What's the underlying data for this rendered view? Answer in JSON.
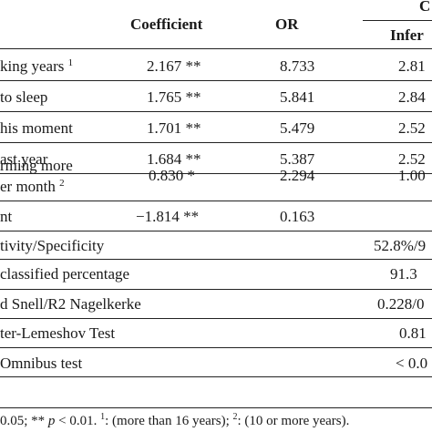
{
  "header": {
    "coefficient": "Coefficient",
    "or": "OR",
    "ci_top": "C",
    "ci_inferior": "Infer"
  },
  "rows": [
    {
      "label": "king years",
      "label_sup": "1",
      "coef": "2.167",
      "sig": "**",
      "or": "8.733",
      "ci": "2.81"
    },
    {
      "label": "to sleep",
      "label_sup": "",
      "coef": "1.765",
      "sig": "**",
      "or": "5.841",
      "ci": "2.84"
    },
    {
      "label": "his moment",
      "label_sup": "",
      "coef": "1.701",
      "sig": "**",
      "or": "5.479",
      "ci": "2.52"
    },
    {
      "label": "ast year",
      "label_sup": "",
      "coef": "1.684",
      "sig": "**",
      "or": "5.387",
      "ci": "2.52"
    },
    {
      "label_line1": "rming more",
      "label_line2": "er month",
      "label_sup": "2",
      "coef": "0.830",
      "sig": "*",
      "or": "2.294",
      "ci": "1.00"
    },
    {
      "label": "nt",
      "label_sup": "",
      "coef": "−1.814",
      "sig": "**",
      "or": "0.163",
      "ci": ""
    }
  ],
  "summary": [
    {
      "label": "tivity/Specificity",
      "value": "52.8%/9"
    },
    {
      "label": "classified percentage",
      "value": "91.3"
    },
    {
      "label": "d Snell/R2 Nagelkerke",
      "value": "0.228/0"
    },
    {
      "label": "ter-Lemeshov Test",
      "value": "0.81"
    },
    {
      "label": "Omnibus test",
      "value": "< 0.0"
    }
  ],
  "footnote": {
    "part1": "0.05; ** ",
    "p": "p",
    "part2": " < 0.01. ",
    "sup1": "1",
    "part3": ": (more than 16 years); ",
    "sup2": "2",
    "part4": ": (10 or more years)."
  }
}
